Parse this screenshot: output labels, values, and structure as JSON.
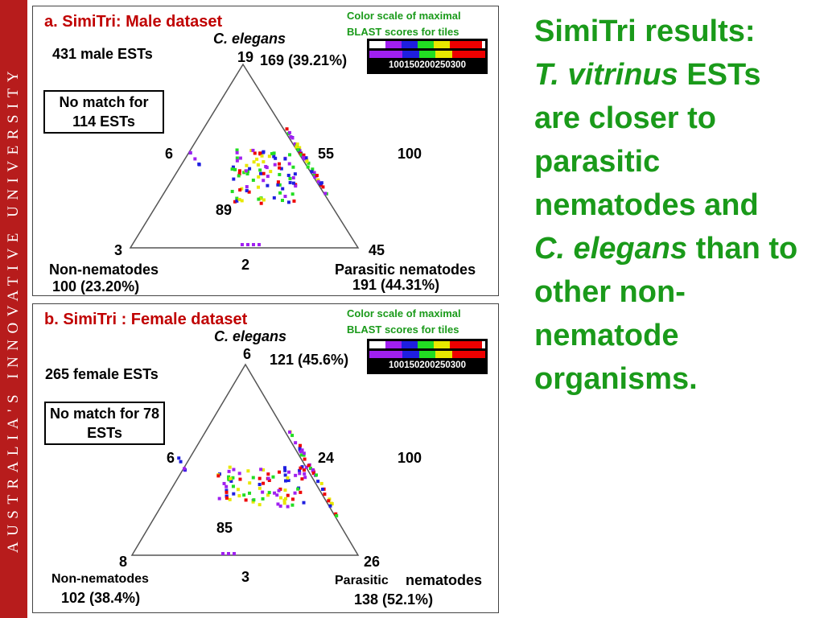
{
  "sidebar": {
    "text": "AUSTRALIA'S INNOVATIVE UNIVERSITY"
  },
  "colors": {
    "sidebar": "#b71c1c",
    "title_red": "#c00000",
    "green": "#1a9a1a",
    "scale": [
      "#a020f0",
      "#1f1fe0",
      "#22dd22",
      "#e8e800",
      "#ee0000"
    ]
  },
  "side_text": {
    "line1": "SimiTri results:",
    "line2_italic": "T. vitrinus",
    "line2_rest": " ESTs",
    "line3": "are closer to parasitic nematodes and",
    "line4_italic": "C. elegans",
    "line4_rest": " than to other non-nematode organisms."
  },
  "panel_a": {
    "title": "a. SimiTri: Male dataset",
    "top_vertex": "C. elegans",
    "top_count": "19",
    "top_summary": "169 (39.21%)",
    "total": "431 male ESTs",
    "no_match": "No match for 114 ESTs",
    "scale_title_1": "Color scale of maximal",
    "scale_title_2": "BLAST scores for tiles",
    "scale_ticks": [
      "100",
      "150",
      "200",
      "250",
      "300"
    ],
    "left_edge": "6",
    "right_edge": "55",
    "right_outer": "100",
    "center": "89",
    "bottom_left_count": "3",
    "bottom_right_count": "45",
    "bottom_edge": "2",
    "left_vertex": "Non-nematodes",
    "left_summary": "100 (23.20%)",
    "right_vertex": "Parasitic nematodes",
    "right_summary": "191 (44.31%)"
  },
  "panel_b": {
    "title": "b. SimiTri : Female dataset",
    "top_vertex": "C. elegans",
    "top_count": "6",
    "top_summary": "121 (45.6%)",
    "total": "265 female ESTs",
    "no_match": "No match for 78 ESTs",
    "scale_title_1": "Color scale of maximal",
    "scale_title_2": "BLAST scores for tiles",
    "scale_ticks": [
      "100",
      "150",
      "200",
      "250",
      "300"
    ],
    "left_edge": "6",
    "right_edge": "24",
    "right_outer": "100",
    "center": "85",
    "bottom_left_count": "8",
    "bottom_right_count": "26",
    "bottom_edge": "3",
    "left_vertex": "Non-nematodes",
    "left_summary": "102 (38.4%)",
    "right_vertex_a": "Parasitic",
    "right_vertex_b": "nematodes",
    "right_summary": "138 (52.1%)"
  }
}
